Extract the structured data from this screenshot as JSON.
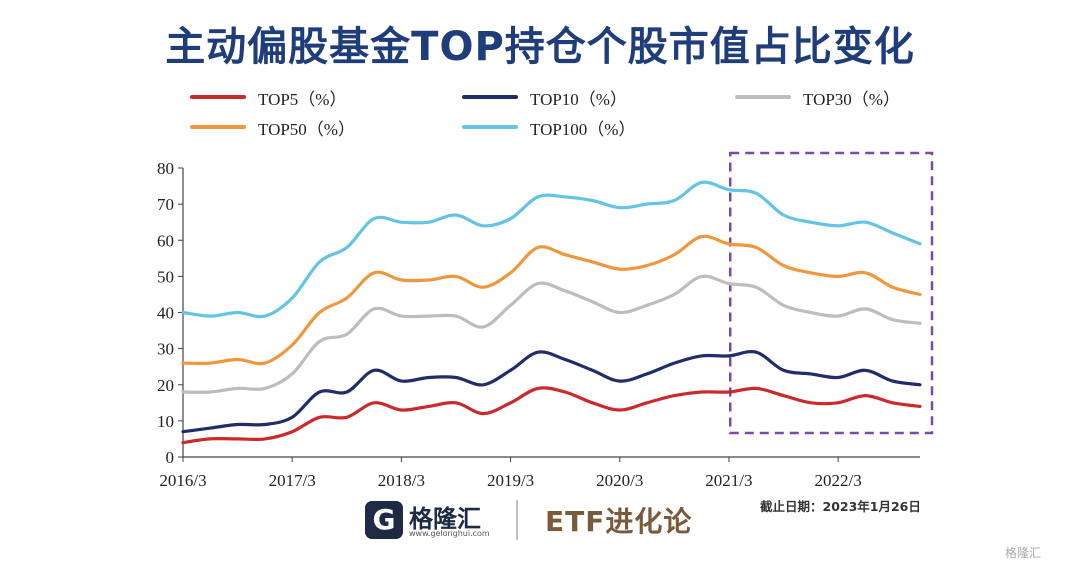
{
  "chart_data": {
    "type": "line",
    "title": "主动偏股基金TOP持仓个股市值占比变化",
    "ylim": [
      0,
      80
    ],
    "yticks": [
      "0",
      "10",
      "20",
      "30",
      "40",
      "50",
      "60",
      "70",
      "80"
    ],
    "xticks": [
      "2016/3",
      "2017/3",
      "2018/3",
      "2019/3",
      "2020/3",
      "2021/3",
      "2022/3"
    ],
    "x": [
      "2016/3",
      "2016/6",
      "2016/9",
      "2016/12",
      "2017/3",
      "2017/6",
      "2017/9",
      "2017/12",
      "2018/3",
      "2018/6",
      "2018/9",
      "2018/12",
      "2019/3",
      "2019/6",
      "2019/9",
      "2019/12",
      "2020/3",
      "2020/6",
      "2020/9",
      "2020/12",
      "2021/3",
      "2021/6",
      "2021/9",
      "2021/12",
      "2022/3",
      "2022/6",
      "2022/9",
      "2022/12"
    ],
    "series": [
      {
        "name": "TOP5（%）",
        "color": "#cc2a2a",
        "values": [
          4,
          5,
          5,
          5,
          7,
          11,
          11,
          15,
          13,
          14,
          15,
          12,
          15,
          19,
          18,
          15,
          13,
          15,
          17,
          18,
          18,
          19,
          17,
          15,
          15,
          17,
          15,
          14
        ]
      },
      {
        "name": "TOP10（%）",
        "color": "#1f2d6b",
        "values": [
          7,
          8,
          9,
          9,
          11,
          18,
          18,
          24,
          21,
          22,
          22,
          20,
          24,
          29,
          27,
          24,
          21,
          23,
          26,
          28,
          28,
          29,
          24,
          23,
          22,
          24,
          21,
          20
        ]
      },
      {
        "name": "TOP30（%）",
        "color": "#bdbdbd",
        "values": [
          18,
          18,
          19,
          19,
          23,
          32,
          34,
          41,
          39,
          39,
          39,
          36,
          42,
          48,
          46,
          43,
          40,
          42,
          45,
          50,
          48,
          47,
          42,
          40,
          39,
          41,
          38,
          37
        ]
      },
      {
        "name": "TOP50（%）",
        "color": "#f0963c",
        "values": [
          26,
          26,
          27,
          26,
          31,
          40,
          44,
          51,
          49,
          49,
          50,
          47,
          51,
          58,
          56,
          54,
          52,
          53,
          56,
          61,
          59,
          58,
          53,
          51,
          50,
          51,
          47,
          45
        ]
      },
      {
        "name": "TOP100（%）",
        "color": "#63c4e8",
        "values": [
          40,
          39,
          40,
          39,
          44,
          54,
          58,
          66,
          65,
          65,
          67,
          64,
          66,
          72,
          72,
          71,
          69,
          70,
          71,
          76,
          74,
          73,
          67,
          65,
          64,
          65,
          62,
          59
        ]
      }
    ],
    "highlight": {
      "from": "2021/6",
      "to": "2022/12",
      "style": "dashed",
      "color": "#7b4aa8"
    },
    "grid": false,
    "legend": "top"
  },
  "footer": {
    "logo_mark": "G",
    "logo_name": "格隆汇",
    "logo_url": "www.gelonghui.com",
    "brand": "ETF进化论",
    "cutoff": "截止日期：2023年1月26日",
    "watermark": "格隆汇"
  }
}
